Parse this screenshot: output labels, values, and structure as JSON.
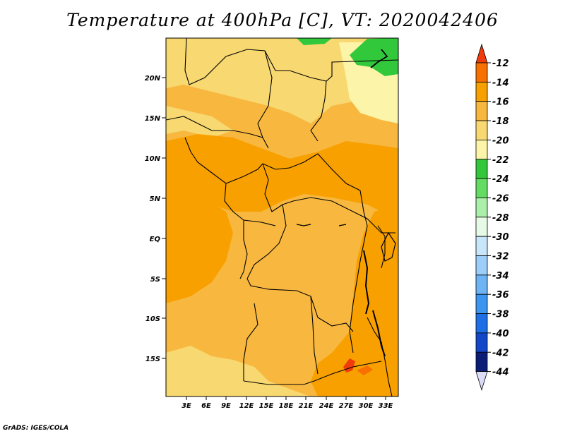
{
  "title": "Temperature at 400hPa [C], VT: 2020042406",
  "footer": "GrADS: IGES/COLA",
  "map": {
    "lat_labels": [
      "20N",
      "15N",
      "10N",
      "5N",
      "EQ",
      "5S",
      "10S",
      "15S"
    ],
    "lon_labels": [
      "3E",
      "6E",
      "9E",
      "12E",
      "15E",
      "18E",
      "21E",
      "24E",
      "27E",
      "30E",
      "33E"
    ]
  },
  "colorbar": {
    "labels": [
      "-12",
      "-14",
      "-16",
      "-18",
      "-20",
      "-22",
      "-24",
      "-26",
      "-28",
      "-30",
      "-32",
      "-34",
      "-36",
      "-38",
      "-40",
      "-42",
      "-44"
    ],
    "colors": [
      "#f03c0a",
      "#f87000",
      "#f8a000",
      "#f8b840",
      "#f8d870",
      "#fcf4a8",
      "#32c83c",
      "#64dc64",
      "#aaf0aa",
      "#e6fae6",
      "#c8e6fa",
      "#9ccefa",
      "#6eb4f5",
      "#3c96f0",
      "#1e6ee6",
      "#1446c8",
      "#0a1e78",
      "#dcdcf8"
    ]
  }
}
